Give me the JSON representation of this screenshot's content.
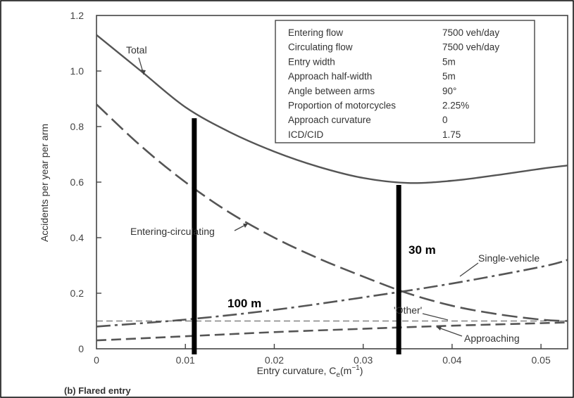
{
  "chart_data": {
    "type": "line",
    "xlabel": "Entry curvature, C",
    "xlabel_sub": "e",
    "xlabel_unit": "(m",
    "xlabel_unit_sup": "−1",
    "xlabel_unit_end": ")",
    "ylabel": "Accidents per year per arm",
    "caption": "(b) Flared entry",
    "xlim": [
      0,
      0.053
    ],
    "ylim": [
      0,
      1.2
    ],
    "x_ticks": [
      {
        "value": 0,
        "label": "0"
      },
      {
        "value": 0.01,
        "label": "0.01"
      },
      {
        "value": 0.02,
        "label": "0.02"
      },
      {
        "value": 0.03,
        "label": "0.03"
      },
      {
        "value": 0.04,
        "label": "0.04"
      },
      {
        "value": 0.05,
        "label": "0.05"
      }
    ],
    "y_ticks": [
      {
        "value": 0,
        "label": "0"
      },
      {
        "value": 0.2,
        "label": "0.2"
      },
      {
        "value": 0.4,
        "label": "0.4"
      },
      {
        "value": 0.6,
        "label": "0.6"
      },
      {
        "value": 0.8,
        "label": "0.8"
      },
      {
        "value": 1.0,
        "label": "1.0"
      },
      {
        "value": 1.2,
        "label": "1.2"
      }
    ],
    "series": [
      {
        "name": "Total",
        "style": "solid",
        "x": [
          0,
          0.005,
          0.01,
          0.015,
          0.02,
          0.025,
          0.03,
          0.035,
          0.04,
          0.045,
          0.05,
          0.053
        ],
        "y": [
          1.13,
          1.0,
          0.87,
          0.78,
          0.71,
          0.655,
          0.615,
          0.597,
          0.605,
          0.625,
          0.648,
          0.66
        ]
      },
      {
        "name": "Entering-circulating",
        "style": "longdash",
        "x": [
          0,
          0.005,
          0.01,
          0.015,
          0.02,
          0.025,
          0.03,
          0.035,
          0.04,
          0.045,
          0.05,
          0.053
        ],
        "y": [
          0.88,
          0.73,
          0.6,
          0.49,
          0.4,
          0.325,
          0.26,
          0.2,
          0.155,
          0.125,
          0.105,
          0.1
        ]
      },
      {
        "name": "Single-vehicle",
        "style": "dashdot",
        "x": [
          0,
          0.01,
          0.02,
          0.03,
          0.04,
          0.05,
          0.053
        ],
        "y": [
          0.08,
          0.105,
          0.14,
          0.185,
          0.235,
          0.295,
          0.32
        ]
      },
      {
        "name": "'Other'",
        "style": "thindash",
        "x": [
          0,
          0.053
        ],
        "y": [
          0.1,
          0.1
        ]
      },
      {
        "name": "Approaching",
        "style": "medash",
        "x": [
          0,
          0.01,
          0.02,
          0.03,
          0.04,
          0.053
        ],
        "y": [
          0.03,
          0.045,
          0.06,
          0.072,
          0.083,
          0.095
        ]
      }
    ],
    "annotations": [
      {
        "name": "100 m",
        "x": 0.011,
        "y_from": 0.0,
        "y_to": 0.83
      },
      {
        "name": "30 m",
        "x": 0.034,
        "y_from": 0.0,
        "y_to": 0.59
      }
    ],
    "info_table": [
      {
        "label": "Entering flow",
        "value": "7500 veh/day"
      },
      {
        "label": "Circulating flow",
        "value": "7500 veh/day"
      },
      {
        "label": "Entry width",
        "value": "5m"
      },
      {
        "label": "Approach half-width",
        "value": "5m"
      },
      {
        "label": "Angle between arms",
        "value": "90°"
      },
      {
        "label": "Proportion of motorcycles",
        "value": "2.25%"
      },
      {
        "label": "Approach curvature",
        "value": "0"
      },
      {
        "label": "ICD/CID",
        "value": "1.75"
      }
    ],
    "colors": {
      "curves": "#555555",
      "markers": "#000000"
    }
  }
}
